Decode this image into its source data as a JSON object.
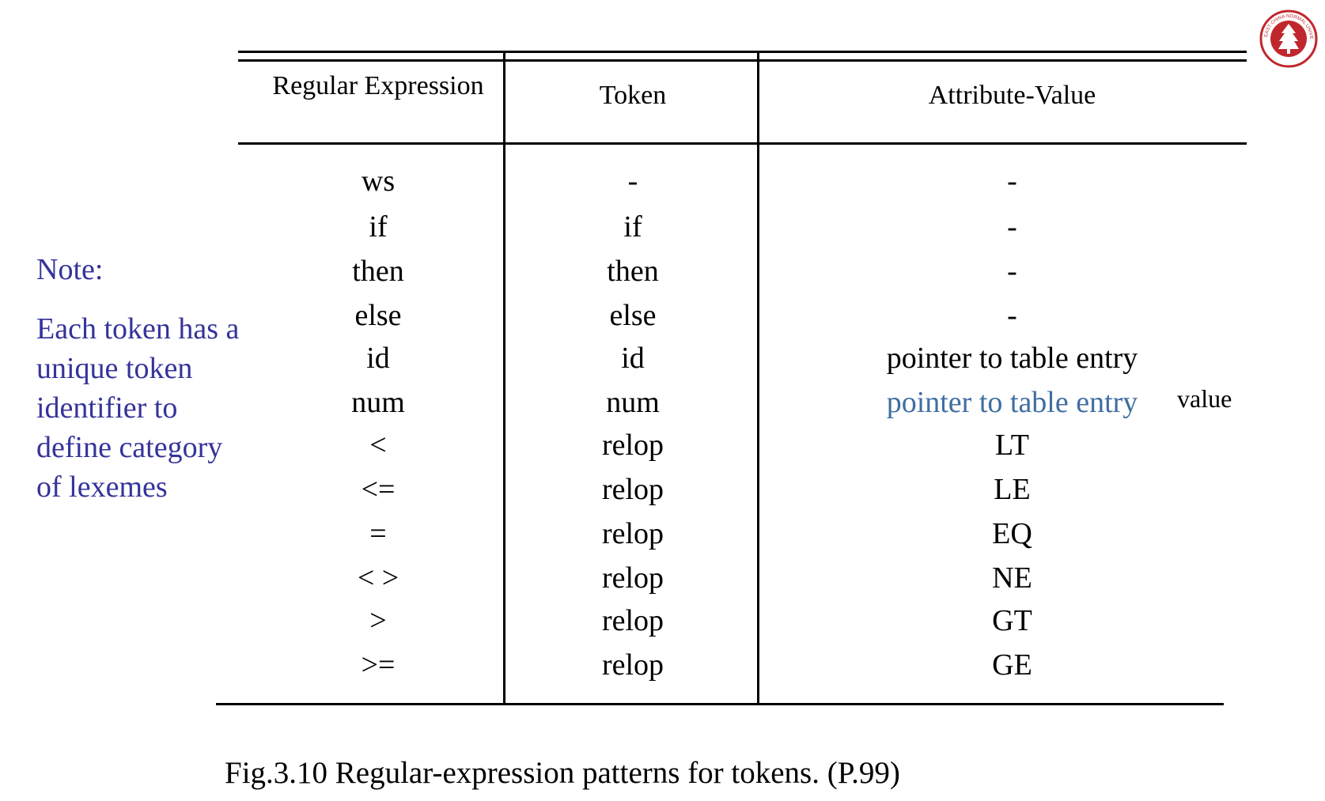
{
  "table": {
    "headers": [
      "Regular Expression",
      "Token",
      "Attribute-Value"
    ],
    "rows": [
      {
        "re": "ws",
        "token": "-",
        "attr": "-"
      },
      {
        "re": "if",
        "token": "if",
        "attr": "-"
      },
      {
        "re": "then",
        "token": "then",
        "attr": "-"
      },
      {
        "re": "else",
        "token": "else",
        "attr": "-"
      },
      {
        "re": "id",
        "token": "id",
        "attr": "pointer to table entry"
      },
      {
        "re": "num",
        "token": "num",
        "attr": "pointer to table entry"
      },
      {
        "re": "<",
        "token": "relop",
        "attr": "LT"
      },
      {
        "re": "<=",
        "token": "relop",
        "attr": "LE"
      },
      {
        "re": "=",
        "token": "relop",
        "attr": "EQ"
      },
      {
        "re": "< >",
        "token": "relop",
        "attr": "NE"
      },
      {
        "re": ">",
        "token": "relop",
        "attr": "GT"
      },
      {
        "re": ">=",
        "token": "relop",
        "attr": "GE"
      }
    ],
    "value_annotation": "value"
  },
  "note": {
    "title": "Note:",
    "lines": [
      "Each token has a",
      "unique token",
      "identifier to",
      "define category",
      "of lexemes"
    ]
  },
  "caption": "Fig.3.10 Regular-expression patterns for tokens.  (P.99)",
  "logo": {
    "text": "EAST CHINA NORMAL UNIVERSITY",
    "color": "#c0272d"
  }
}
